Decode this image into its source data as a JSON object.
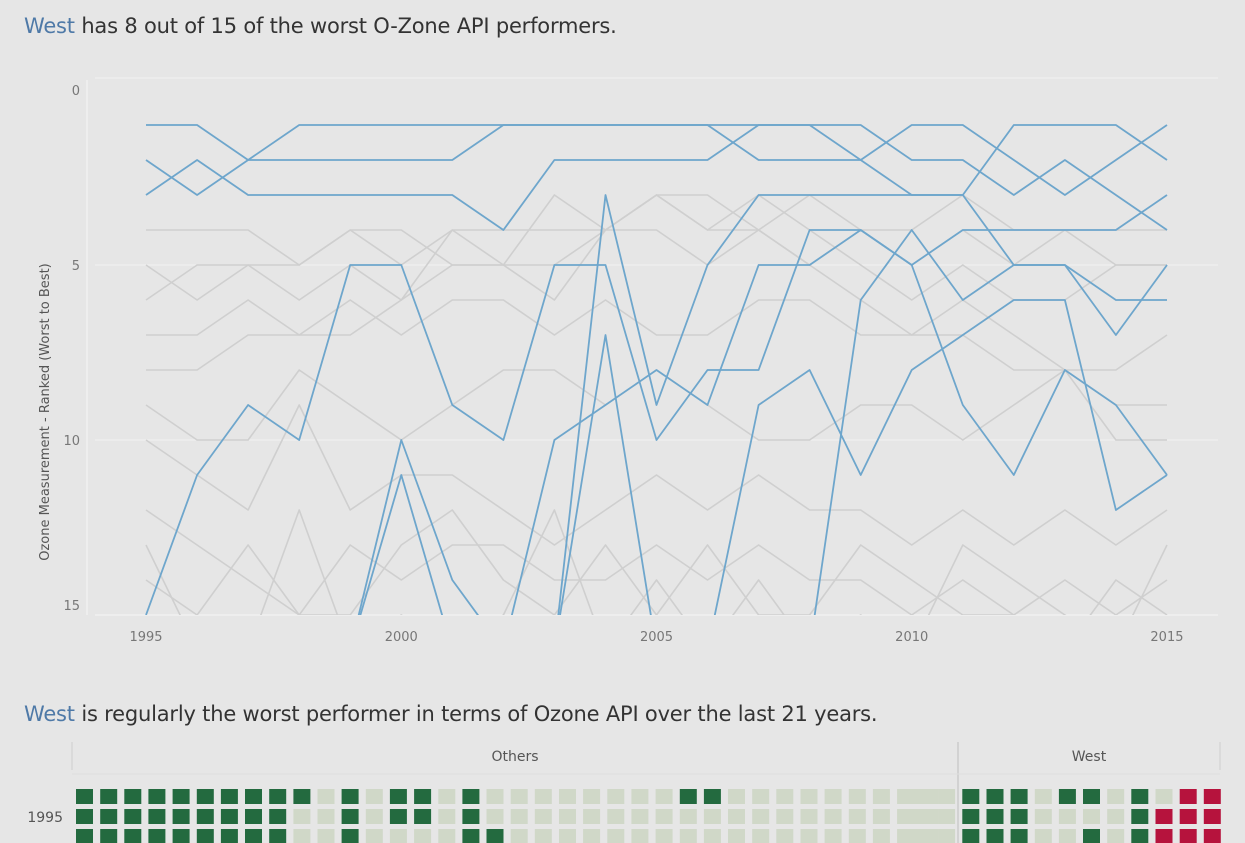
{
  "headline1": {
    "highlight": "West",
    "text": " has 8 out of 15 of the worst O-Zone API performers."
  },
  "headline2": {
    "highlight": "West",
    "text": " is regularly the worst performer in terms of Ozone API over the last 21 years."
  },
  "colors": {
    "highlight_line": "#6ea6cc",
    "background_line": "#cfcfcf",
    "dark_green": "#236a3f",
    "light_green": "#d0d8c8",
    "red": "#b6133d",
    "accent_text": "#4e79a7"
  },
  "chart_data": [
    {
      "type": "line",
      "ylabel": "Ozone Measurement - Ranked (Worst to Best)",
      "xlabel": "",
      "x_ticks": [
        "1995",
        "2000",
        "2005",
        "2010",
        "2015"
      ],
      "y_ticks": [
        "0",
        "5",
        "10",
        "15"
      ],
      "xlim": [
        1994,
        2016
      ],
      "ylim": [
        0,
        15
      ],
      "y_reversed": true,
      "x": [
        1995,
        1996,
        1997,
        1998,
        1999,
        2000,
        2001,
        2002,
        2003,
        2004,
        2005,
        2006,
        2007,
        2008,
        2009,
        2010,
        2011,
        2012,
        2013,
        2014,
        2015
      ],
      "series": [
        {
          "group": "West",
          "values": [
            1,
            1,
            2,
            2,
            2,
            2,
            2,
            1,
            1,
            1,
            1,
            1,
            2,
            2,
            2,
            3,
            3,
            1,
            1,
            1,
            2
          ]
        },
        {
          "group": "West",
          "values": [
            2,
            3,
            2,
            1,
            1,
            1,
            1,
            1,
            1,
            1,
            1,
            1,
            1,
            1,
            1,
            2,
            2,
            3,
            2,
            3,
            4
          ]
        },
        {
          "group": "West",
          "values": [
            3,
            2,
            3,
            3,
            3,
            3,
            3,
            4,
            2,
            2,
            2,
            2,
            1,
            1,
            2,
            1,
            1,
            2,
            3,
            2,
            1
          ]
        },
        {
          "group": "West",
          "values": [
            15,
            11,
            9,
            10,
            5,
            5,
            9,
            10,
            5,
            5,
            10,
            8,
            8,
            4,
            4,
            5,
            4,
            4,
            4,
            4,
            3
          ]
        },
        {
          "group": "West",
          "values": [
            16,
            16,
            16,
            16,
            16,
            16,
            16,
            16,
            16,
            3,
            9,
            5,
            3,
            3,
            3,
            3,
            3,
            5,
            5,
            6,
            6
          ]
        },
        {
          "group": "West",
          "values": [
            16,
            16,
            16,
            16,
            16,
            10,
            14,
            16,
            10,
            9,
            8,
            9,
            5,
            5,
            4,
            5,
            9,
            11,
            8,
            9,
            11
          ]
        },
        {
          "group": "West",
          "values": [
            16,
            16,
            16,
            16,
            16,
            11,
            16,
            16,
            16,
            16,
            16,
            16,
            16,
            16,
            6,
            4,
            6,
            5,
            5,
            7,
            5
          ]
        },
        {
          "group": "West",
          "values": [
            16,
            16,
            16,
            16,
            16,
            16,
            16,
            16,
            16,
            7,
            16,
            16,
            9,
            8,
            11,
            8,
            7,
            6,
            6,
            12,
            11
          ]
        },
        {
          "group": "Others",
          "values": [
            4,
            4,
            4,
            5,
            4,
            4,
            5,
            5,
            3,
            4,
            3,
            4,
            3,
            4,
            5,
            6,
            5,
            6,
            6,
            5,
            5
          ]
        },
        {
          "group": "Others",
          "values": [
            5,
            6,
            5,
            5,
            4,
            5,
            4,
            5,
            5,
            4,
            4,
            5,
            4,
            5,
            4,
            4,
            3,
            4,
            4,
            5,
            5
          ]
        },
        {
          "group": "Others",
          "values": [
            6,
            5,
            5,
            6,
            5,
            6,
            4,
            4,
            4,
            4,
            3,
            4,
            4,
            3,
            4,
            5,
            4,
            5,
            4,
            4,
            4
          ]
        },
        {
          "group": "Others",
          "values": [
            7,
            7,
            6,
            7,
            7,
            6,
            5,
            5,
            6,
            4,
            3,
            3,
            4,
            5,
            6,
            7,
            6,
            7,
            8,
            8,
            7
          ]
        },
        {
          "group": "Others",
          "values": [
            8,
            8,
            7,
            7,
            6,
            7,
            6,
            6,
            7,
            6,
            7,
            7,
            6,
            6,
            7,
            7,
            7,
            8,
            8,
            9,
            9
          ]
        },
        {
          "group": "Others",
          "values": [
            9,
            10,
            10,
            8,
            9,
            10,
            9,
            8,
            8,
            9,
            8,
            9,
            10,
            10,
            9,
            9,
            10,
            9,
            8,
            10,
            10
          ]
        },
        {
          "group": "Others",
          "values": [
            10,
            11,
            12,
            9,
            12,
            11,
            11,
            12,
            13,
            12,
            11,
            12,
            11,
            12,
            12,
            13,
            12,
            13,
            12,
            13,
            12
          ]
        },
        {
          "group": "Others",
          "values": [
            12,
            13,
            14,
            15,
            13,
            14,
            13,
            13,
            14,
            14,
            13,
            14,
            13,
            14,
            14,
            15,
            14,
            15,
            14,
            15,
            14
          ]
        },
        {
          "group": "Others",
          "values": [
            14,
            15,
            13,
            15,
            15,
            13,
            12,
            14,
            15,
            13,
            15,
            13,
            15,
            15,
            13,
            14,
            15,
            15,
            16,
            14,
            15
          ]
        },
        {
          "group": "Others",
          "values": [
            13,
            16,
            16,
            12,
            16,
            15,
            16,
            15,
            12,
            16,
            14,
            16,
            14,
            16,
            15,
            16,
            13,
            14,
            15,
            16,
            13
          ]
        }
      ]
    },
    {
      "type": "heatmap",
      "panel_labels": [
        "Others",
        "West"
      ],
      "row_labels": [
        "1995"
      ],
      "note": "cell states per row: 0 = light green, 1 = dark green, 2 = red",
      "others_rows": [
        [
          1,
          1,
          1,
          1,
          1,
          1,
          1,
          1,
          1,
          1,
          0,
          1,
          0,
          1,
          1,
          0,
          1,
          0,
          0,
          0,
          0,
          0,
          0,
          0,
          0,
          1,
          1,
          0,
          0,
          0,
          0,
          0,
          0,
          0,
          0,
          0
        ],
        [
          1,
          1,
          1,
          1,
          1,
          1,
          1,
          1,
          1,
          0,
          0,
          1,
          0,
          1,
          1,
          0,
          1,
          0,
          0,
          0,
          0,
          0,
          0,
          0,
          0,
          0,
          0,
          0,
          0,
          0,
          0,
          0,
          0,
          0,
          0,
          0
        ],
        [
          1,
          1,
          1,
          1,
          1,
          1,
          1,
          1,
          1,
          0,
          0,
          1,
          0,
          0,
          0,
          0,
          1,
          1,
          0,
          0,
          0,
          0,
          0,
          0,
          0,
          0,
          0,
          0,
          0,
          0,
          0,
          0,
          0,
          0,
          0,
          0
        ]
      ],
      "west_rows": [
        [
          0,
          0,
          1,
          1,
          1,
          0,
          1,
          1,
          0,
          1,
          0,
          2,
          2
        ],
        [
          0,
          0,
          1,
          1,
          1,
          0,
          0,
          0,
          0,
          1,
          2,
          2,
          2
        ],
        [
          0,
          0,
          1,
          1,
          1,
          0,
          0,
          1,
          0,
          1,
          2,
          2,
          2
        ]
      ]
    }
  ]
}
